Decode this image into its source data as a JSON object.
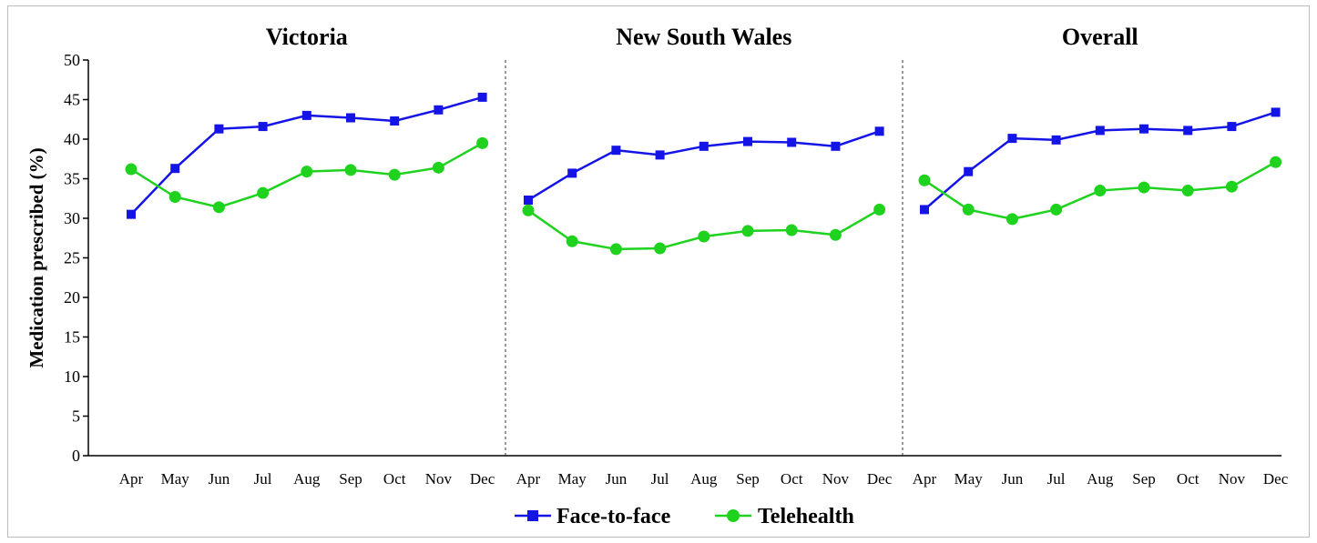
{
  "chart_data": {
    "type": "line",
    "ylabel": "Medication prescribed (%)",
    "ylim": [
      0,
      50
    ],
    "yticks": [
      0,
      5,
      10,
      15,
      20,
      25,
      30,
      35,
      40,
      45,
      50
    ],
    "categories": [
      "Apr",
      "May",
      "Jun",
      "Jul",
      "Aug",
      "Sep",
      "Oct",
      "Nov",
      "Dec"
    ],
    "legend_position": "bottom-center",
    "series_styles": [
      {
        "name": "Face-to-face",
        "color": "#1414e6",
        "marker": "square"
      },
      {
        "name": "Telehealth",
        "color": "#1ed21e",
        "marker": "circle"
      }
    ],
    "panels": [
      {
        "title": "Victoria",
        "series": [
          {
            "name": "Face-to-face",
            "values": [
              30.5,
              36.3,
              41.3,
              41.6,
              43.0,
              42.7,
              42.3,
              43.7,
              45.3
            ]
          },
          {
            "name": "Telehealth",
            "values": [
              36.2,
              32.7,
              31.4,
              33.2,
              35.9,
              36.1,
              35.5,
              36.4,
              39.5
            ]
          }
        ]
      },
      {
        "title": "New South Wales",
        "series": [
          {
            "name": "Face-to-face",
            "values": [
              32.3,
              35.7,
              38.6,
              38.0,
              39.1,
              39.7,
              39.6,
              39.1,
              41.0
            ]
          },
          {
            "name": "Telehealth",
            "values": [
              31.0,
              27.1,
              26.1,
              26.2,
              27.7,
              28.4,
              28.5,
              27.9,
              31.1
            ]
          }
        ]
      },
      {
        "title": "Overall",
        "series": [
          {
            "name": "Face-to-face",
            "values": [
              31.1,
              35.9,
              40.1,
              39.9,
              41.1,
              41.3,
              41.1,
              41.6,
              43.4
            ]
          },
          {
            "name": "Telehealth",
            "values": [
              34.8,
              31.1,
              29.9,
              31.1,
              33.5,
              33.9,
              33.5,
              34.0,
              37.1
            ]
          }
        ]
      }
    ]
  }
}
